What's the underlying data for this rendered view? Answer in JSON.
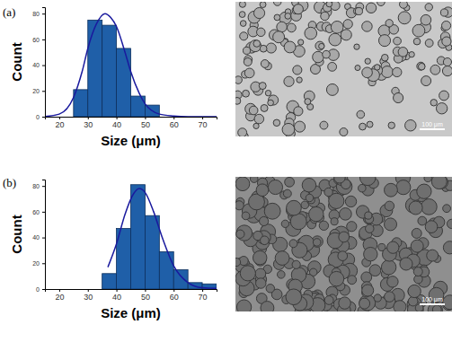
{
  "chart_data": [
    {
      "type": "histogram",
      "xlabel": "Size (μm)",
      "ylabel": "Count",
      "bins": [
        25,
        30,
        35,
        40,
        45,
        50,
        55
      ],
      "counts": [
        21,
        75,
        71,
        53,
        16,
        9
      ],
      "color": "#1f5fa8",
      "xlim": [
        15,
        75
      ],
      "xticks": [
        20,
        30,
        40,
        50,
        60,
        70
      ],
      "ylim": [
        0,
        85
      ],
      "yticks": [
        0,
        20,
        40,
        60,
        80
      ],
      "curve": {
        "x": [
          15,
          20,
          25,
          28,
          30,
          33,
          36,
          38,
          40,
          43,
          45,
          48,
          50,
          55,
          60,
          65,
          70,
          75
        ],
        "y": [
          0.2,
          2,
          15,
          35,
          53,
          72,
          80,
          77,
          70,
          50,
          35,
          18,
          10,
          2,
          0.5,
          0,
          0,
          0
        ],
        "color": "#1a1a9e"
      }
    },
    {
      "type": "histogram",
      "xlabel": "Size (μm)",
      "ylabel": "Count",
      "bins": [
        35,
        40,
        45,
        50,
        55,
        60,
        65,
        70,
        75
      ],
      "counts": [
        12,
        47,
        81,
        57,
        29,
        15,
        5,
        4
      ],
      "color": "#1f5fa8",
      "xlim": [
        15,
        75
      ],
      "xticks": [
        20,
        30,
        40,
        50,
        60,
        70
      ],
      "ylim": [
        0,
        85
      ],
      "yticks": [
        0,
        20,
        40,
        60,
        80
      ],
      "curve": {
        "x": [
          37,
          40,
          43,
          46,
          48,
          50,
          53,
          56,
          60,
          65,
          70,
          75
        ],
        "y": [
          17,
          35,
          58,
          74,
          78,
          75,
          60,
          40,
          18,
          5,
          1,
          0.5
        ],
        "color": "#1a1a9e"
      }
    }
  ],
  "panels": [
    {
      "label": "(a)",
      "scale_bar": "100 μm"
    },
    {
      "label": "(b)",
      "scale_bar": "100 μm"
    }
  ]
}
